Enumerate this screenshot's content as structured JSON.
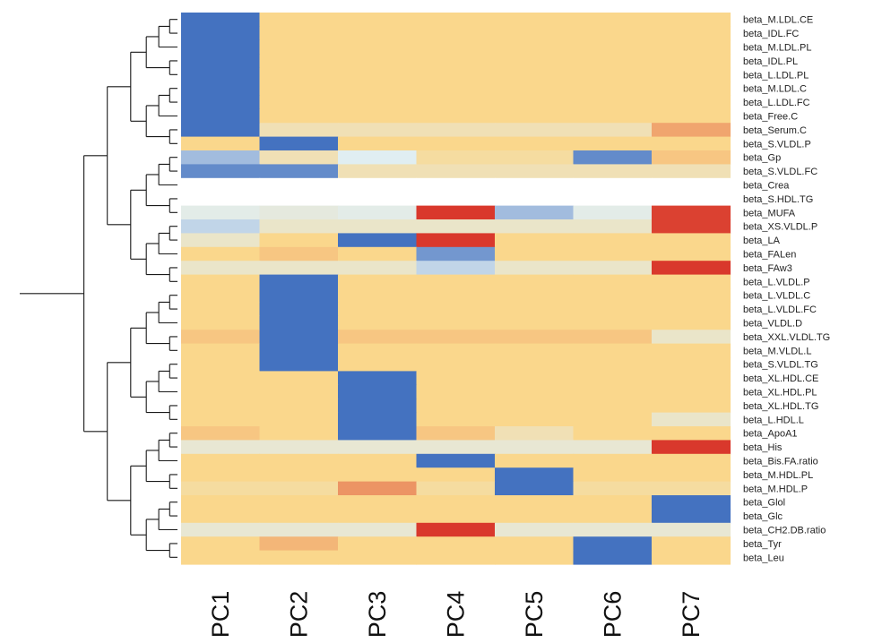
{
  "chart_data": {
    "type": "heatmap",
    "title": "",
    "columns": [
      "PC1",
      "PC2",
      "PC3",
      "PC4",
      "PC5",
      "PC6",
      "PC7"
    ],
    "rows": [
      "beta_M.LDL.CE",
      "beta_IDL.FC",
      "beta_M.LDL.PL",
      "beta_IDL.PL",
      "beta_L.LDL.PL",
      "beta_M.LDL.C",
      "beta_L.LDL.FC",
      "beta_Free.C",
      "beta_Serum.C",
      "beta_S.VLDL.P",
      "beta_Gp",
      "beta_S.VLDL.FC",
      "beta_Crea",
      "beta_S.HDL.TG",
      "beta_MUFA",
      "beta_XS.VLDL.P",
      "beta_LA",
      "beta_FALen",
      "beta_FAw3",
      "beta_L.VLDL.P",
      "beta_L.VLDL.C",
      "beta_L.VLDL.FC",
      "beta_VLDL.D",
      "beta_XXL.VLDL.TG",
      "beta_M.VLDL.L",
      "beta_S.VLDL.TG",
      "beta_XL.HDL.CE",
      "beta_XL.HDL.PL",
      "beta_XL.HDL.TG",
      "beta_L.HDL.L",
      "beta_ApoA1",
      "beta_His",
      "beta_Bis.FA.ratio",
      "beta_M.HDL.PL",
      "beta_M.HDL.P",
      "beta_Glol",
      "beta_Glc",
      "beta_CH2.DB.ratio",
      "beta_Tyr",
      "beta_Leu"
    ],
    "value_range": [
      -1,
      1
    ],
    "color_scale": {
      "low": "#4472c0",
      "mid": "#fad78c",
      "high": "#d73027"
    },
    "missing_color": "#ffffff",
    "values": [
      [
        -1,
        0,
        0,
        0,
        0,
        0,
        0
      ],
      [
        -1,
        0,
        0,
        0,
        0,
        0,
        0
      ],
      [
        -1,
        0,
        0,
        0,
        0,
        0,
        0
      ],
      [
        -1,
        0,
        0,
        0,
        0,
        0,
        0
      ],
      [
        -1,
        0,
        0,
        0,
        0,
        0,
        0
      ],
      [
        -1,
        0,
        0,
        0,
        0,
        0,
        0
      ],
      [
        -1,
        0,
        0,
        0,
        0,
        0,
        0
      ],
      [
        -1,
        0,
        0,
        0,
        0,
        0,
        0
      ],
      [
        -1,
        -0.2,
        -0.2,
        -0.2,
        -0.2,
        -0.2,
        0.3
      ],
      [
        0,
        -1,
        0,
        0,
        0,
        0,
        0
      ],
      [
        -0.7,
        -0.2,
        -0.5,
        -0.1,
        -0.1,
        -0.9,
        0.1
      ],
      [
        -0.9,
        -0.9,
        -0.2,
        -0.2,
        -0.2,
        -0.2,
        -0.2
      ],
      [
        null,
        null,
        null,
        null,
        null,
        null,
        null
      ],
      [
        null,
        null,
        null,
        null,
        null,
        null,
        null
      ],
      [
        -0.45,
        -0.4,
        -0.45,
        0.95,
        -0.7,
        -0.45,
        0.9
      ],
      [
        -0.6,
        -0.3,
        -0.3,
        -0.3,
        -0.3,
        -0.3,
        0.9
      ],
      [
        -0.3,
        0,
        -1,
        0.95,
        0,
        0,
        0
      ],
      [
        0,
        0.1,
        0,
        -0.85,
        0,
        0,
        0
      ],
      [
        -0.3,
        -0.3,
        -0.3,
        -0.6,
        -0.3,
        -0.3,
        0.95
      ],
      [
        0,
        -1,
        0,
        0,
        0,
        0,
        0
      ],
      [
        0,
        -1,
        0,
        0,
        0,
        0,
        0
      ],
      [
        0,
        -1,
        0,
        0,
        0,
        0,
        0
      ],
      [
        0,
        -1,
        0,
        0,
        0,
        0,
        0
      ],
      [
        0.1,
        -1,
        0.1,
        0.1,
        0.1,
        0.1,
        -0.3
      ],
      [
        0,
        -1,
        0,
        0,
        0,
        0,
        0
      ],
      [
        0,
        -1,
        0,
        0,
        0,
        0,
        0
      ],
      [
        0,
        0,
        -1,
        0,
        0,
        0,
        0
      ],
      [
        0,
        0,
        -1,
        0,
        0,
        0,
        0
      ],
      [
        0,
        0,
        -1,
        0,
        0,
        0,
        0
      ],
      [
        0,
        0,
        -1,
        0,
        0,
        0,
        -0.3
      ],
      [
        0.1,
        0,
        -1,
        0.1,
        -0.2,
        0,
        0
      ],
      [
        -0.35,
        -0.35,
        -0.35,
        -0.35,
        -0.35,
        -0.35,
        0.95
      ],
      [
        0,
        0,
        0,
        -1,
        0,
        0,
        0
      ],
      [
        0,
        0,
        0,
        0,
        -1,
        0,
        0
      ],
      [
        -0.1,
        -0.1,
        0.4,
        -0.1,
        -1,
        -0.1,
        -0.1
      ],
      [
        0,
        0,
        0,
        0,
        0,
        0,
        -1
      ],
      [
        0,
        0,
        0,
        0,
        0,
        0,
        -1
      ],
      [
        -0.35,
        -0.35,
        -0.35,
        0.95,
        -0.35,
        -0.35,
        -0.35
      ],
      [
        0,
        0.2,
        0,
        0,
        0,
        -1,
        0
      ],
      [
        0,
        0,
        0,
        0,
        0,
        -1,
        0
      ]
    ],
    "dendrogram": {
      "position": "left",
      "orientation": "rows",
      "heights": [
        0.05,
        0.12,
        0.2,
        0.3,
        0.45,
        0.6,
        0.8,
        1.0
      ]
    }
  }
}
